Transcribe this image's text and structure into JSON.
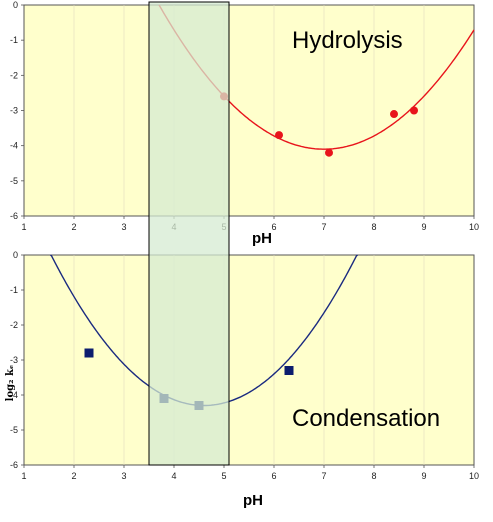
{
  "chart_data": [
    {
      "type": "scatter",
      "annotation": "Hydrolysis",
      "xlabel": "pH",
      "ylabel": "",
      "xlim": [
        1,
        10
      ],
      "ylim": [
        -6,
        0
      ],
      "xticks": [
        "1",
        "2",
        "3",
        "4",
        "5",
        "6",
        "7",
        "8",
        "9",
        "10"
      ],
      "yticks": [
        "0",
        "-1",
        "-2",
        "-3",
        "-4",
        "-5",
        "-6"
      ],
      "series": [
        {
          "marker": "circle",
          "color": "#e8141c",
          "x": [
            5.0,
            6.1,
            7.1,
            8.4,
            8.8
          ],
          "y": [
            -2.6,
            -3.7,
            -4.2,
            -3.1,
            -3.0
          ]
        }
      ],
      "fit_curve": {
        "color": "#e8141c",
        "kind": "quadratic",
        "vertex_x": 7.0,
        "vertex_y": -4.1,
        "a": 0.377
      }
    },
    {
      "type": "scatter",
      "annotation": "Condensation",
      "xlabel": "pH",
      "ylabel": "log₂ kₑ",
      "xlim": [
        1,
        10
      ],
      "ylim": [
        -6,
        0
      ],
      "xticks": [
        "1",
        "2",
        "3",
        "4",
        "5",
        "6",
        "7",
        "8",
        "9",
        "10"
      ],
      "yticks": [
        "0",
        "-1",
        "-2",
        "-3",
        "-4",
        "-5",
        "-6"
      ],
      "series": [
        {
          "marker": "square",
          "color": "#0c1d6e",
          "x": [
            2.3,
            3.8,
            4.5,
            6.3
          ],
          "y": [
            -2.8,
            -4.1,
            -4.3,
            -3.3
          ]
        }
      ],
      "fit_curve": {
        "color": "#1a2a80",
        "kind": "quadratic",
        "vertex_x": 4.6,
        "vertex_y": -4.3,
        "a": 0.46,
        "x_end": 8.2
      }
    }
  ],
  "highlight_band": {
    "x_range": [
      3.5,
      5.1
    ],
    "color": "#d6ebd2"
  },
  "colors": {
    "plot_background": "#ffffcc",
    "frame": "#555555"
  }
}
